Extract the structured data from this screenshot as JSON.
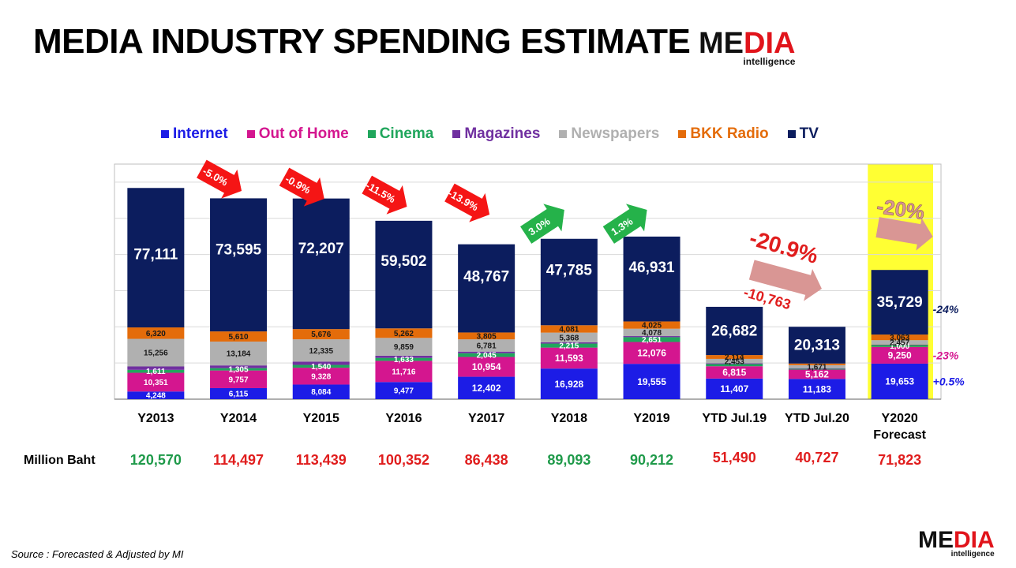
{
  "header": {
    "title": "MEDIA INDUSTRY SPENDING ESTIMATE"
  },
  "logo": {
    "word_me": "ME",
    "word_dia": "DIA",
    "subtitle": "intelligence"
  },
  "source": "Source :  Forecasted & Adjusted by MI",
  "colors": {
    "Internet": "#1c1ce6",
    "Out of Home": "#d4168f",
    "Cinema": "#20a65c",
    "Magazines": "#7030a0",
    "Newspapers": "#b0b0b0",
    "BKK Radio": "#e46c0a",
    "TV": "#0c1d5e",
    "highlight": "#ffff33",
    "green_total": "#1f9a4a",
    "red_total": "#e01d1d"
  },
  "chart_data": {
    "type": "bar",
    "stacked": true,
    "categories": [
      "Y2013",
      "Y2014",
      "Y2015",
      "Y2016",
      "Y2017",
      "Y2018",
      "Y2019",
      "YTD Jul.19",
      "YTD Jul.20",
      "Y2020\nForecast"
    ],
    "series": [
      {
        "name": "Internet",
        "values": [
          4248,
          6115,
          8084,
          9477,
          12402,
          16928,
          19555,
          11407,
          11183,
          19653
        ],
        "labels": [
          "4,248",
          "6,115",
          "8,084",
          "9,477",
          "12,402",
          "16,928",
          "19,555",
          "11,407",
          "11,183",
          "19,653"
        ]
      },
      {
        "name": "Out of Home",
        "values": [
          10351,
          9757,
          9328,
          11716,
          10954,
          11593,
          12076,
          6815,
          5162,
          9250
        ],
        "labels": [
          "10,351",
          "9,757",
          "9,328",
          "11,716",
          "10,954",
          "11,593",
          "12,076",
          "6,815",
          "5,162",
          "9,250"
        ]
      },
      {
        "name": "Cinema",
        "values": [
          1611,
          1305,
          1540,
          1633,
          2045,
          2215,
          2651,
          1200,
          500,
          1000
        ],
        "labels": [
          "1,611",
          "1,305",
          "1,540",
          "1,633",
          "2,045",
          "2,215",
          "2,651",
          "",
          "",
          "1,000"
        ]
      },
      {
        "name": "Magazines",
        "values": [
          1900,
          1500,
          1800,
          1200,
          900,
          700,
          600,
          400,
          300,
          300
        ],
        "labels": [
          "",
          "",
          "",
          "",
          "",
          "",
          "",
          "",
          "",
          ""
        ]
      },
      {
        "name": "Newspapers",
        "values": [
          15256,
          13184,
          12335,
          9859,
          6781,
          5368,
          4078,
          2453,
          1671,
          2457
        ],
        "labels": [
          "15,256",
          "13,184",
          "12,335",
          "9,859",
          "6,781",
          "5,368",
          "4,078",
          "2,453",
          "1,671",
          "2,457"
        ]
      },
      {
        "name": "BKK Radio",
        "values": [
          6320,
          5610,
          5676,
          5262,
          3805,
          4081,
          4025,
          2114,
          900,
          3063
        ],
        "labels": [
          "6,320",
          "5,610",
          "5,676",
          "5,262",
          "3,805",
          "4,081",
          "4,025",
          "2,114",
          "",
          "3,063"
        ]
      },
      {
        "name": "TV",
        "values": [
          77111,
          73595,
          72207,
          59502,
          48767,
          47785,
          46931,
          26682,
          20313,
          35729
        ],
        "labels": [
          "77,111",
          "73,595",
          "72,207",
          "59,502",
          "48,767",
          "47,785",
          "46,931",
          "26,682",
          "20,313",
          "35,729"
        ]
      }
    ],
    "totals_label": "Million Baht",
    "totals": [
      {
        "text": "120,570",
        "trend": "up"
      },
      {
        "text": "114,497",
        "trend": "down"
      },
      {
        "text": "113,439",
        "trend": "down"
      },
      {
        "text": "100,352",
        "trend": "down"
      },
      {
        "text": "86,438",
        "trend": "down"
      },
      {
        "text": "89,093",
        "trend": "up"
      },
      {
        "text": "90,212",
        "trend": "up"
      },
      {
        "text": "51,490",
        "trend": "down"
      },
      {
        "text": "40,727",
        "trend": "down"
      },
      {
        "text": "71,823",
        "trend": "down"
      }
    ],
    "growth_annotations": [
      {
        "from": 0,
        "to": 1,
        "text": "-5.0%",
        "trend": "down"
      },
      {
        "from": 1,
        "to": 2,
        "text": "-0.9%",
        "trend": "down"
      },
      {
        "from": 2,
        "to": 3,
        "text": "-11.5%",
        "trend": "down"
      },
      {
        "from": 3,
        "to": 4,
        "text": "-13.9%",
        "trend": "down"
      },
      {
        "from": 4,
        "to": 5,
        "text": "3.0%",
        "trend": "up"
      },
      {
        "from": 5,
        "to": 6,
        "text": "1.3%",
        "trend": "up"
      }
    ],
    "ytd_annotation": {
      "percent": "-20.9%",
      "amount": "-10,763"
    },
    "forecast_annotation": {
      "percent": "-20%"
    },
    "forecast_side_labels": [
      {
        "series": "TV",
        "text": "-24%"
      },
      {
        "series": "Out of Home",
        "text": "-23%"
      },
      {
        "series": "Internet",
        "text": "+0.5%"
      }
    ],
    "highlighted_category": 9,
    "ylim": [
      0,
      130000
    ],
    "grid": true,
    "legend_position": "top"
  }
}
